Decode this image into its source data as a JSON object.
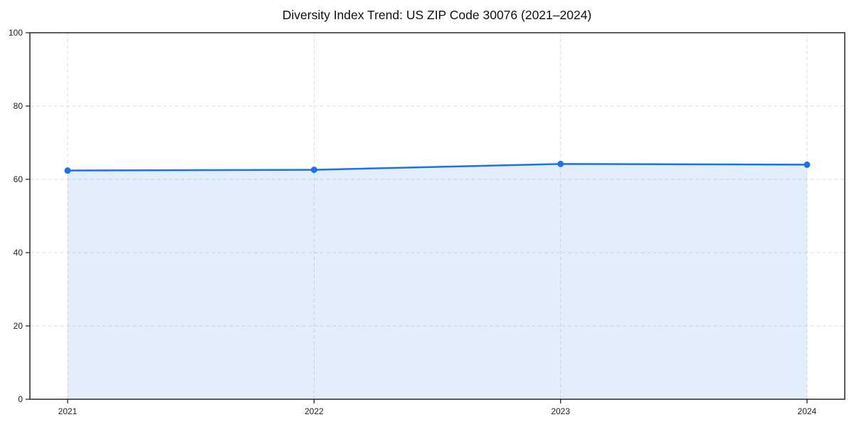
{
  "chart_data": {
    "type": "area",
    "title": "Diversity Index Trend: US ZIP Code 30076 (2021–2024)",
    "x": [
      "2021",
      "2022",
      "2023",
      "2024"
    ],
    "series": [
      {
        "name": "Diversity Index",
        "values": [
          62.4,
          62.6,
          64.2,
          64.0
        ]
      }
    ],
    "xlabel": "",
    "ylabel": "",
    "ylim": [
      0,
      100
    ],
    "yticks": [
      0,
      20,
      40,
      60,
      80,
      100
    ],
    "grid": true,
    "grid_style": "dashed",
    "legend": "none",
    "line_color": "#1a73e8",
    "fill_opacity": 0.12,
    "grid_color": "#dcdcdc",
    "axis_color": "#1a1a1a",
    "tick_color": "#222222",
    "background": "#ffffff"
  }
}
